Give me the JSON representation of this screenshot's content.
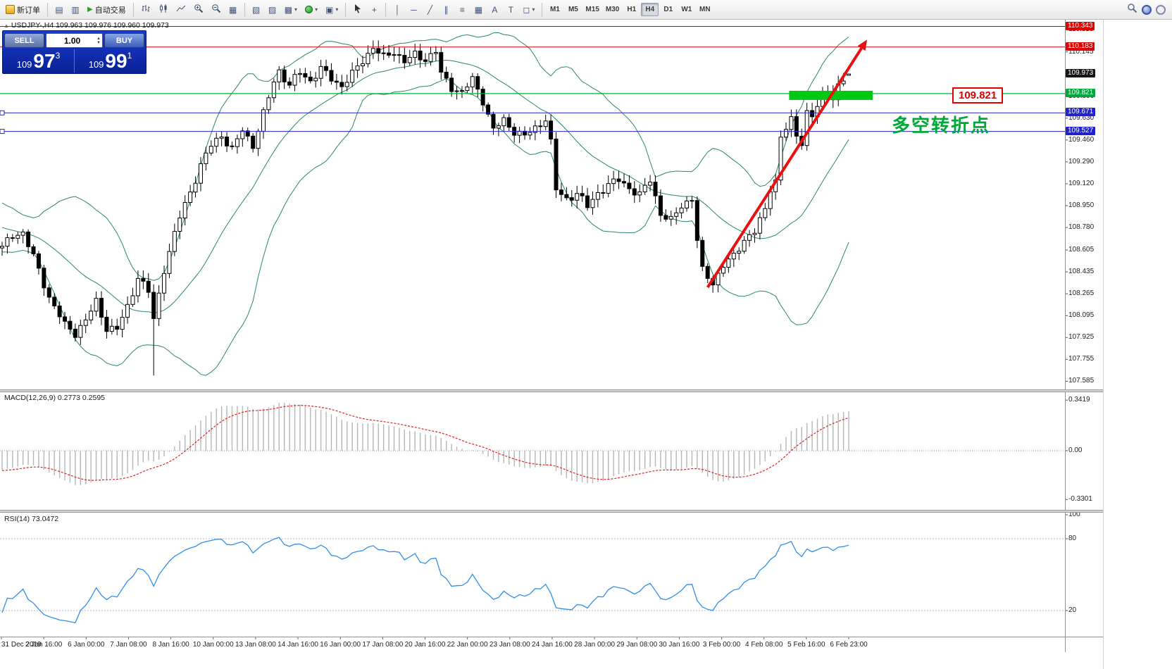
{
  "toolbar": {
    "new_order": "新订单",
    "auto_trading": "自动交易",
    "timeframes": [
      "M1",
      "M5",
      "M15",
      "M30",
      "H1",
      "H4",
      "D1",
      "W1",
      "MN"
    ],
    "active_timeframe": "H4"
  },
  "icons": {
    "profiles": "▤",
    "data_window": "▥",
    "auto_trading_play": "▶",
    "tile_windows": "▦",
    "cascade_windows": "▧",
    "tile_vertical": "▨",
    "new_chart": "▩",
    "templates": "▣",
    "crosshair": "+",
    "vertical_line": "│",
    "horizontal_line": "─",
    "trendline": "╱",
    "channel": "∥",
    "fibonacci": "≡",
    "grid_tool": "▦",
    "text_tool": "A",
    "label_tool": "T",
    "shapes_tool": "◻",
    "dropdown_caret": "▾"
  },
  "symbol_bar": {
    "collapse_marker": "▲",
    "text": "USDJPY-,H4  109.963 109.976 109.960 109.973"
  },
  "trade_panel": {
    "sell_label": "SELL",
    "buy_label": "BUY",
    "volume": "1.00",
    "sell_price_prefix": "109",
    "sell_price_big": "97",
    "sell_price_sup": "3",
    "buy_price_prefix": "109",
    "buy_price_big": "99",
    "buy_price_sup": "1"
  },
  "annotations": {
    "price_box": {
      "text": "109.821",
      "color": "#e00000"
    },
    "turn_text": {
      "text": "多空转折点",
      "color": "#00a83c"
    },
    "green_band": {
      "from_index": 151,
      "to_index": 167,
      "price": 109.807,
      "color": "#00c814"
    },
    "arrow": {
      "from_index": 135,
      "from_price": 108.315,
      "to_index": 165.5,
      "to_price": 110.24,
      "color": "#e81010"
    },
    "line_handles": [
      109.671,
      109.527
    ]
  },
  "chart_data": {
    "type": "candlestick",
    "symbol": "USDJPY-",
    "timeframe": "H4",
    "ohlc_current": {
      "open": 109.963,
      "high": 109.976,
      "low": 109.96,
      "close": 109.973
    },
    "bid": "109.973",
    "ask": "109.991",
    "price_range": [
      107.52,
      110.4
    ],
    "price_lines": [
      {
        "price": 110.343,
        "color": "#e00000",
        "width": 1
      },
      {
        "price": 110.183,
        "color": "#e00000",
        "width": 1
      },
      {
        "price": 109.821,
        "color": "#00b040",
        "width": 1.2
      },
      {
        "price": 109.671,
        "color": "#2222cc",
        "width": 1
      },
      {
        "price": 109.527,
        "color": "#2222cc",
        "width": 1
      }
    ],
    "price_axis": {
      "regular": [
        "110.318",
        "110.145",
        "109.800",
        "109.630",
        "109.460",
        "109.290",
        "109.120",
        "108.950",
        "108.780",
        "108.605",
        "108.435",
        "108.265",
        "108.095",
        "107.925",
        "107.755",
        "107.585"
      ],
      "special": [
        {
          "text": "110.343",
          "bg": "#e00000"
        },
        {
          "text": "110.183",
          "bg": "#e00000"
        },
        {
          "text": "109.973",
          "bg": "#151515"
        },
        {
          "text": "109.821",
          "bg": "#00a83c"
        },
        {
          "text": "109.671",
          "bg": "#2222cc"
        },
        {
          "text": "109.527",
          "bg": "#2222cc"
        }
      ]
    },
    "time_axis": [
      "31 Dec 2019",
      "2 Jan 16:00",
      "6 Jan 00:00",
      "7 Jan 08:00",
      "8 Jan 16:00",
      "10 Jan 00:00",
      "13 Jan 08:00",
      "14 Jan 16:00",
      "16 Jan 00:00",
      "17 Jan 08:00",
      "20 Jan 16:00",
      "22 Jan 00:00",
      "23 Jan 08:00",
      "24 Jan 16:00",
      "28 Jan 00:00",
      "29 Jan 08:00",
      "30 Jan 16:00",
      "3 Feb 00:00",
      "4 Feb 08:00",
      "5 Feb 16:00",
      "6 Feb 23:00"
    ],
    "close_anchors": [
      [
        -40,
        109.55
      ],
      [
        -32,
        109.3
      ],
      [
        -24,
        109.05
      ],
      [
        -16,
        108.88
      ],
      [
        -8,
        108.76
      ],
      [
        -2,
        108.66
      ],
      [
        0,
        108.62
      ],
      [
        2,
        108.72
      ],
      [
        4,
        108.74
      ],
      [
        6,
        108.55
      ],
      [
        9,
        108.24
      ],
      [
        12,
        108.02
      ],
      [
        14,
        107.96
      ],
      [
        16,
        108.06
      ],
      [
        18,
        108.2
      ],
      [
        20,
        108.0
      ],
      [
        22,
        107.99
      ],
      [
        24,
        108.16
      ],
      [
        26,
        108.4
      ],
      [
        28,
        108.28
      ],
      [
        29,
        108.06
      ],
      [
        31,
        108.46
      ],
      [
        34,
        108.86
      ],
      [
        36,
        109.06
      ],
      [
        38,
        109.26
      ],
      [
        40,
        109.42
      ],
      [
        42,
        109.5
      ],
      [
        44,
        109.38
      ],
      [
        46,
        109.54
      ],
      [
        48,
        109.42
      ],
      [
        50,
        109.66
      ],
      [
        52,
        109.92
      ],
      [
        53,
        110.0
      ],
      [
        55,
        109.88
      ],
      [
        57,
        109.99
      ],
      [
        59,
        109.92
      ],
      [
        61,
        110.01
      ],
      [
        63,
        109.94
      ],
      [
        65,
        109.88
      ],
      [
        67,
        109.97
      ],
      [
        69,
        110.08
      ],
      [
        71,
        110.18
      ],
      [
        73,
        110.1
      ],
      [
        75,
        110.15
      ],
      [
        77,
        110.07
      ],
      [
        79,
        110.12
      ],
      [
        81,
        110.09
      ],
      [
        83,
        110.15
      ],
      [
        84,
        109.97
      ],
      [
        86,
        109.87
      ],
      [
        88,
        109.83
      ],
      [
        90,
        109.93
      ],
      [
        92,
        109.77
      ],
      [
        94,
        109.54
      ],
      [
        96,
        109.61
      ],
      [
        98,
        109.53
      ],
      [
        100,
        109.49
      ],
      [
        102,
        109.55
      ],
      [
        104,
        109.63
      ],
      [
        105,
        109.44
      ],
      [
        106,
        109.07
      ],
      [
        108,
        109.0
      ],
      [
        110,
        109.05
      ],
      [
        112,
        108.94
      ],
      [
        114,
        109.05
      ],
      [
        116,
        109.11
      ],
      [
        118,
        109.15
      ],
      [
        120,
        109.09
      ],
      [
        122,
        109.03
      ],
      [
        124,
        109.15
      ],
      [
        126,
        108.89
      ],
      [
        128,
        108.83
      ],
      [
        130,
        108.95
      ],
      [
        132,
        109.01
      ],
      [
        133,
        108.68
      ],
      [
        134,
        108.44
      ],
      [
        136,
        108.35
      ],
      [
        138,
        108.49
      ],
      [
        140,
        108.55
      ],
      [
        142,
        108.69
      ],
      [
        144,
        108.75
      ],
      [
        146,
        108.91
      ],
      [
        147,
        109.09
      ],
      [
        148,
        109.15
      ],
      [
        149,
        109.48
      ],
      [
        150,
        109.55
      ],
      [
        151,
        109.61
      ],
      [
        152,
        109.49
      ],
      [
        153,
        109.45
      ],
      [
        154,
        109.68
      ],
      [
        155,
        109.64
      ],
      [
        156,
        109.72
      ],
      [
        157,
        109.78
      ],
      [
        158,
        109.84
      ],
      [
        159,
        109.8
      ],
      [
        160,
        109.88
      ],
      [
        161,
        109.92
      ],
      [
        162,
        109.973
      ]
    ],
    "special_lows": {
      "29": 107.63
    },
    "noise": [
      0.022,
      2.17,
      0.016,
      1.13
    ],
    "bollinger": {
      "period": 20,
      "deviation": 2,
      "color": "#2a8a5a"
    },
    "macd": {
      "fast": 12,
      "slow": 26,
      "signal": 9,
      "label": "MACD(12,26,9) 0.2773 0.2595",
      "axis": [
        {
          "text": "0.3419",
          "value": 0.3419
        },
        {
          "text": "0.00",
          "value": 0
        },
        {
          "text": "-0.3301",
          "value": -0.3301
        }
      ],
      "histogram_color": "#b6b6b6",
      "signal_color": "#e02020"
    },
    "rsi": {
      "period": 14,
      "label": "RSI(14) 73.0472",
      "axis": [
        {
          "text": "100",
          "value": 100
        },
        {
          "text": "80",
          "value": 80
        },
        {
          "text": "20",
          "value": 20
        }
      ],
      "levels": [
        80,
        20
      ],
      "color": "#2f8fe8"
    }
  }
}
